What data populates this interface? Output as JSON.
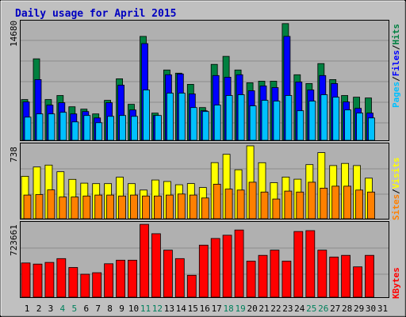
{
  "title": "Daily usage for April 2015",
  "colors": {
    "background": "#c0c0c0",
    "title": "#0000c0",
    "hits": "#008040",
    "files": "#0000ff",
    "pages": "#00c0ff",
    "visits": "#ffff00",
    "sites": "#ff8000",
    "kbytes": "#ff0000",
    "weekend_day": "#00805c",
    "weekday": "#000000"
  },
  "chart_data": [
    {
      "type": "bar",
      "panel": "hits-files-pages",
      "ymax_label": "14680",
      "ymax": 14680,
      "legend": [
        {
          "text": "Hits",
          "color": "#008040"
        },
        {
          "text": "Files",
          "color": "#0000ff"
        },
        {
          "text": "Pages",
          "color": "#00c0ff"
        }
      ],
      "series": [
        {
          "name": "Hits",
          "values": [
            5100,
            10200,
            5100,
            5600,
            4200,
            3900,
            3300,
            5000,
            7700,
            4500,
            13000,
            3400,
            8800,
            8400,
            7000,
            4100,
            9500,
            10500,
            8800,
            7200,
            7400,
            7400,
            14600,
            8200,
            7100,
            9600,
            7600,
            5600,
            5400,
            5300
          ]
        },
        {
          "name": "Files",
          "values": [
            4800,
            7600,
            4400,
            4700,
            3300,
            3600,
            2800,
            4700,
            6900,
            3800,
            12100,
            3100,
            8200,
            8300,
            5800,
            3700,
            8100,
            7900,
            8200,
            6200,
            6800,
            6600,
            13000,
            7300,
            6300,
            8100,
            7100,
            4800,
            4000,
            3400
          ]
        },
        {
          "name": "Pages",
          "values": [
            2900,
            3300,
            3300,
            3500,
            2300,
            3100,
            2200,
            3000,
            3100,
            3000,
            6300,
            3100,
            5900,
            5900,
            4100,
            3600,
            4400,
            5600,
            5700,
            4300,
            5000,
            4900,
            5600,
            3700,
            4900,
            5700,
            5400,
            3800,
            3400,
            2800
          ]
        }
      ]
    },
    {
      "type": "bar",
      "panel": "visits-sites",
      "ymax_label": "738",
      "ymax": 738,
      "legend": [
        {
          "text": "Visits",
          "color": "#ffff00"
        },
        {
          "text": "Sites",
          "color": "#ff8000"
        }
      ],
      "series": [
        {
          "name": "Visits",
          "values": [
            430,
            524,
            543,
            476,
            399,
            360,
            355,
            355,
            420,
            355,
            290,
            392,
            377,
            344,
            356,
            316,
            568,
            652,
            496,
            738,
            567,
            365,
            422,
            400,
            548,
            669,
            538,
            560,
            538,
            411
          ]
        },
        {
          "name": "Sites",
          "values": [
            240,
            245,
            292,
            220,
            220,
            230,
            240,
            240,
            230,
            240,
            230,
            230,
            240,
            250,
            240,
            210,
            350,
            300,
            290,
            370,
            270,
            200,
            280,
            270,
            370,
            310,
            330,
            330,
            290,
            270
          ]
        }
      ]
    },
    {
      "type": "bar",
      "panel": "kbytes",
      "ymax_label": "723661",
      "ymax": 723661,
      "legend": [
        {
          "text": "KBytes",
          "color": "#ff0000"
        }
      ],
      "series": [
        {
          "name": "KBytes",
          "values": [
            340000,
            329000,
            345000,
            383000,
            295000,
            228000,
            243000,
            332000,
            367000,
            367000,
            723000,
            630000,
            467000,
            383000,
            218000,
            517000,
            583000,
            615000,
            667000,
            358000,
            415000,
            467000,
            358000,
            652000,
            661000,
            467000,
            399000,
            415000,
            301000,
            415000
          ]
        }
      ]
    }
  ],
  "x_axis": {
    "categories": [
      "1",
      "2",
      "3",
      "4",
      "5",
      "6",
      "7",
      "8",
      "9",
      "10",
      "11",
      "12",
      "13",
      "14",
      "15",
      "16",
      "17",
      "18",
      "19",
      "20",
      "21",
      "22",
      "23",
      "24",
      "25",
      "26",
      "27",
      "28",
      "29",
      "30",
      "31"
    ],
    "weekend_days": [
      "4",
      "5",
      "11",
      "12",
      "18",
      "19",
      "25",
      "26"
    ]
  }
}
